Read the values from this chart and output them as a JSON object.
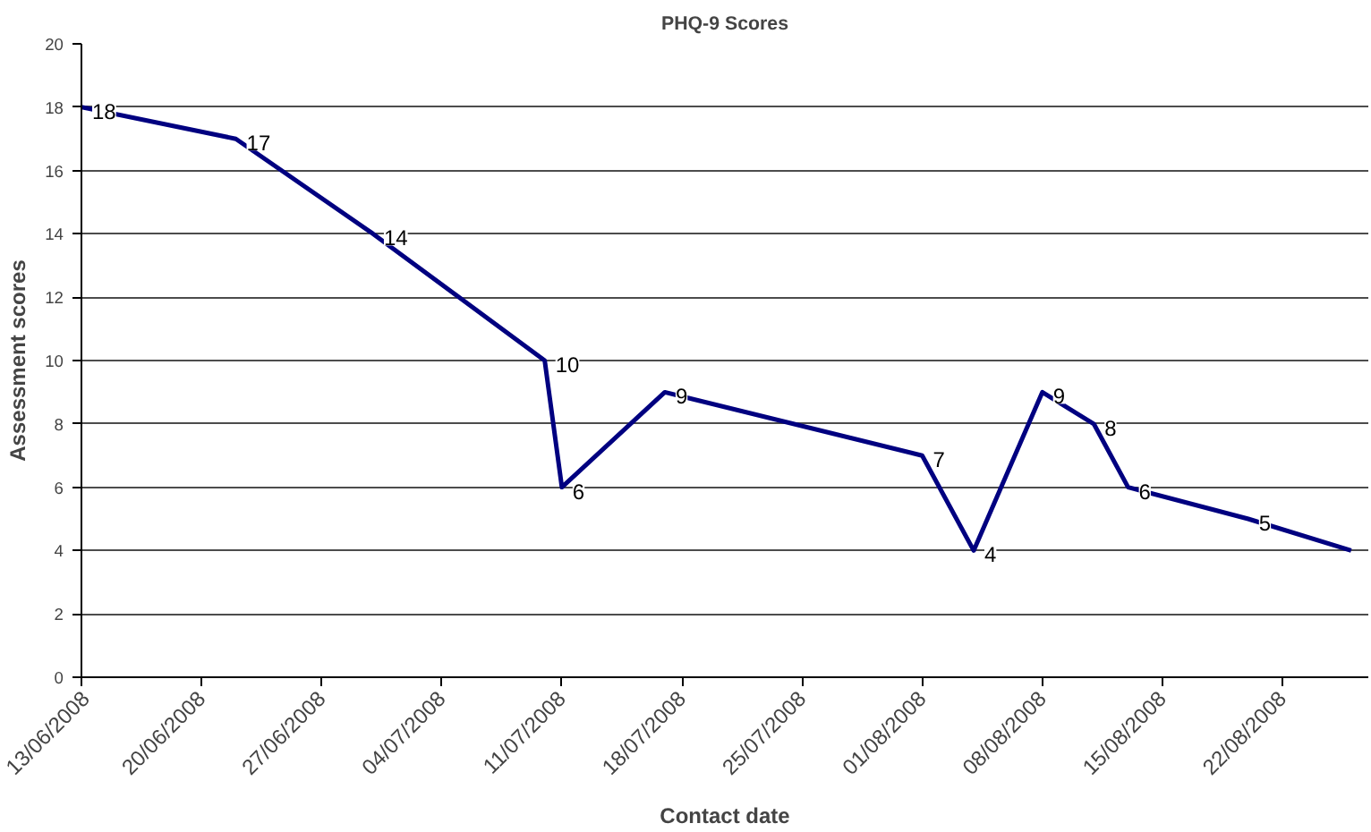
{
  "chart_data": {
    "type": "line",
    "title": "PHQ-9 Scores",
    "xlabel": "Contact date",
    "ylabel": "Assessment scores",
    "x": [
      "2008-06-13",
      "2008-06-22",
      "2008-06-30",
      "2008-07-10",
      "2008-07-11",
      "2008-07-17",
      "2008-08-01",
      "2008-08-04",
      "2008-08-08",
      "2008-08-11",
      "2008-08-13",
      "2008-08-20",
      "2008-08-26"
    ],
    "series": [
      {
        "color": "#000080",
        "values": [
          18,
          17,
          14,
          10,
          6,
          9,
          7,
          4,
          9,
          8,
          6,
          5,
          4
        ],
        "value_labels": [
          "18",
          "17",
          "14",
          "10",
          "6",
          "9",
          "7",
          "4",
          "9",
          "8",
          "6",
          "5",
          null
        ]
      }
    ],
    "xlim": [
      "2008-06-13",
      "2008-08-27"
    ],
    "xticks": [
      {
        "value": "2008-06-13",
        "label": "13/06/2008"
      },
      {
        "value": "2008-06-20",
        "label": "20/06/2008"
      },
      {
        "value": "2008-06-27",
        "label": "27/06/2008"
      },
      {
        "value": "2008-07-04",
        "label": "04/07/2008"
      },
      {
        "value": "2008-07-11",
        "label": "11/07/2008"
      },
      {
        "value": "2008-07-18",
        "label": "18/07/2008"
      },
      {
        "value": "2008-07-25",
        "label": "25/07/2008"
      },
      {
        "value": "2008-08-01",
        "label": "01/08/2008"
      },
      {
        "value": "2008-08-08",
        "label": "08/08/2008"
      },
      {
        "value": "2008-08-15",
        "label": "15/08/2008"
      },
      {
        "value": "2008-08-22",
        "label": "22/08/2008"
      }
    ],
    "ylim": [
      0,
      20
    ],
    "yticks": [
      0,
      2,
      4,
      6,
      8,
      10,
      12,
      14,
      16,
      18,
      20
    ],
    "grid": "y",
    "marker": "none",
    "line_style": "solid"
  }
}
